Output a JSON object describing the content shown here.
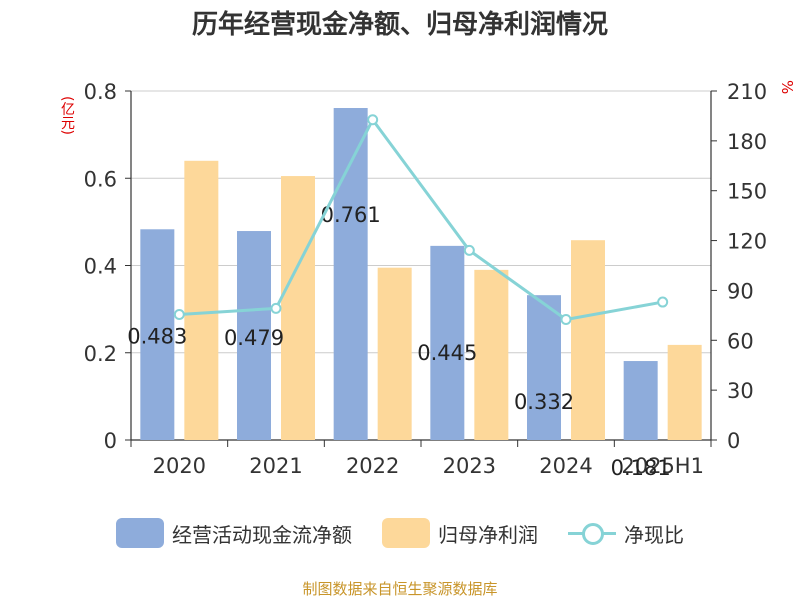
{
  "title": "历年经营现金净额、归母净利润情况",
  "footer": "制图数据来自恒生聚源数据库",
  "units": {
    "left": "(亿元)",
    "right": "%"
  },
  "colors": {
    "operating_cf": "#8eacdb",
    "net_profit": "#fdd89a",
    "ratio": "#86d3d6"
  },
  "chart_data": {
    "type": "bar",
    "categories": [
      "2020",
      "2021",
      "2022",
      "2023",
      "2024",
      "2025H1"
    ],
    "series": [
      {
        "name": "经营活动现金流净额",
        "type": "bar",
        "axis": "left",
        "values": [
          0.483,
          0.479,
          0.761,
          0.445,
          0.332,
          0.181
        ],
        "labels": [
          "0.483",
          "0.479",
          "0.761",
          "0.445",
          "0.332",
          "0.181"
        ]
      },
      {
        "name": "归母净利润",
        "type": "bar",
        "axis": "left",
        "values": [
          0.64,
          0.605,
          0.395,
          0.39,
          0.458,
          0.218
        ]
      },
      {
        "name": "净现比",
        "type": "line",
        "axis": "right",
        "values": [
          75.5,
          79.2,
          192.7,
          114.1,
          72.5,
          83.0
        ]
      }
    ],
    "y_left": {
      "min": 0,
      "max": 0.8,
      "ticks": [
        "0",
        "0.2",
        "0.4",
        "0.6",
        "0.8"
      ]
    },
    "y_right": {
      "min": 0,
      "max": 210,
      "ticks": [
        "0",
        "30",
        "60",
        "90",
        "120",
        "150",
        "180",
        "210"
      ]
    },
    "grid": true,
    "legend_position": "bottom"
  }
}
